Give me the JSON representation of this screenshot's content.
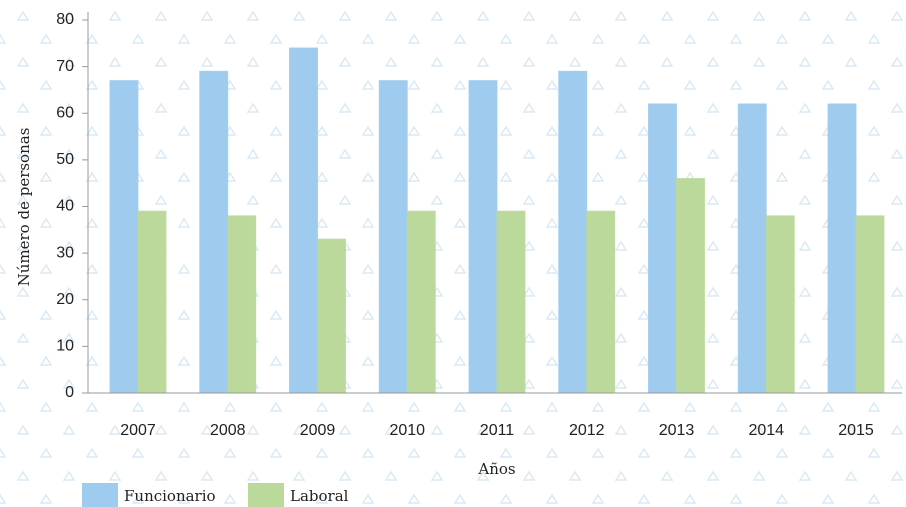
{
  "chart_data": {
    "type": "bar",
    "x_label": "Años",
    "y_label": "Número de personas",
    "categories": [
      "2007",
      "2008",
      "2009",
      "2010",
      "2011",
      "2012",
      "2013",
      "2014",
      "2015"
    ],
    "series": [
      {
        "name": "Funcionario",
        "color": "#9fcbee",
        "values": [
          67,
          69,
          74,
          67,
          67,
          69,
          62,
          62,
          62
        ]
      },
      {
        "name": "Laboral",
        "color": "#bad99b",
        "values": [
          39,
          38,
          33,
          39,
          39,
          39,
          46,
          38,
          38
        ]
      }
    ],
    "ylim": [
      0,
      80
    ],
    "yticks": [
      0,
      10,
      20,
      30,
      40,
      50,
      60,
      70,
      80
    ]
  }
}
